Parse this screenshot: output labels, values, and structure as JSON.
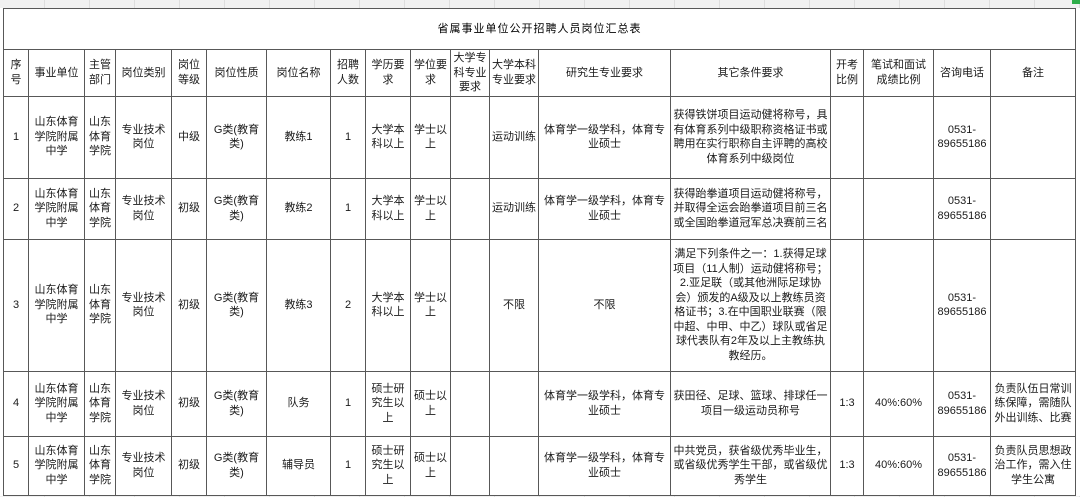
{
  "page": {
    "title": "省属事业单位公开招聘人员岗位汇总表"
  },
  "table": {
    "columns": [
      "序号",
      "事业单位",
      "主管部门",
      "岗位类别",
      "岗位等级",
      "岗位性质",
      "岗位名称",
      "招聘人数",
      "学历要求",
      "学位要求",
      "大学专科专业要求",
      "大学本科专业要求",
      "研究生专业要求",
      "其它条件要求",
      "开考比例",
      "笔试和面试成绩比例",
      "咨询电话",
      "备注"
    ],
    "rows": [
      [
        "1",
        "山东体育学院附属中学",
        "山东体育学院",
        "专业技术岗位",
        "中级",
        "G类(教育类)",
        "教练1",
        "1",
        "大学本科以上",
        "学士以上",
        "",
        "运动训练",
        "体育学一级学科，体育专业硕士",
        "获得铁饼项目运动健将称号，具有体育系列中级职称资格证书或聘用在实行职称自主评聘的高校体育系列中级岗位",
        "",
        "",
        "0531-89655186",
        ""
      ],
      [
        "2",
        "山东体育学院附属中学",
        "山东体育学院",
        "专业技术岗位",
        "初级",
        "G类(教育类)",
        "教练2",
        "1",
        "大学本科以上",
        "学士以上",
        "",
        "运动训练",
        "体育学一级学科，体育专业硕士",
        "获得跆拳道项目运动健将称号，并取得全运会跆拳道项目前三名或全国跆拳道冠军总决赛前三名",
        "",
        "",
        "0531-89655186",
        ""
      ],
      [
        "3",
        "山东体育学院附属中学",
        "山东体育学院",
        "专业技术岗位",
        "初级",
        "G类(教育类)",
        "教练3",
        "2",
        "大学本科以上",
        "学士以上",
        "",
        "不限",
        "不限",
        "满足下列条件之一：1.获得足球项目（11人制）运动健将称号；2.亚足联（或其他洲际足球协会）颁发的A级及以上教练员资格证书；3.在中国职业联赛（限中超、中甲、中乙）球队或省足球代表队有2年及以上主教练执教经历。",
        "",
        "",
        "0531-89655186",
        ""
      ],
      [
        "4",
        "山东体育学院附属中学",
        "山东体育学院",
        "专业技术岗位",
        "初级",
        "G类(教育类)",
        "队务",
        "1",
        "硕士研究生以上",
        "硕士以上",
        "",
        "",
        "体育学一级学科，体育专业硕士",
        "获田径、足球、篮球、排球任一项目一级运动员称号",
        "1:3",
        "40%:60%",
        "0531-89655186",
        "负责队伍日常训练保障，需随队外出训练、比赛"
      ],
      [
        "5",
        "山东体育学院附属中学",
        "山东体育学院",
        "专业技术岗位",
        "初级",
        "G类(教育类)",
        "辅导员",
        "1",
        "硕士研究生以上",
        "硕士以上",
        "",
        "",
        "体育学一级学科，体育专业硕士",
        "中共党员，获省级优秀毕业生，或省级优秀学生干部，或省级优秀学生",
        "1:3",
        "40%:60%",
        "0531-89655186",
        "负责队员思想政治工作，需入住学生公寓"
      ]
    ]
  }
}
